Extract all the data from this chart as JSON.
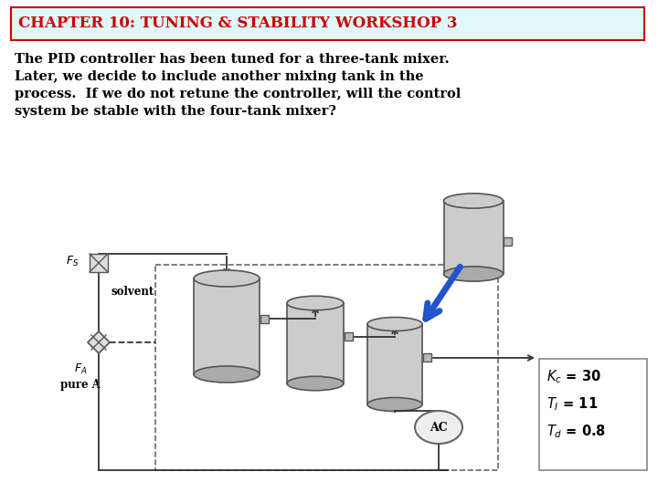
{
  "title": "CHAPTER 10: TUNING & STABILITY WORKSHOP 3",
  "title_color": "#cc0000",
  "title_bg": "#dff8f8",
  "title_border": "#cc0000",
  "body_text_lines": [
    "The PID controller has been tuned for a three-tank mixer.",
    "Later, we decide to include another mixing tank in the",
    "process.  If we do not retune the controller, will the control",
    "system be stable with the four-tank mixer?"
  ],
  "bg_color": "#ffffff",
  "tank_fill": "#cccccc",
  "tank_bottom": "#aaaaaa",
  "tank_edge": "#555555",
  "line_color": "#333333",
  "arrow_blue": "#2255cc",
  "valve_fill": "#dddddd",
  "ac_fill": "#eeeeee",
  "pid_border": "#888888",
  "pid_bg": "#ffffff",
  "pid_text_color": "#000000",
  "text_color": "#000000",
  "solvent_label": "solvent",
  "pureA_label": "pure A",
  "AC_label": "AC",
  "pid_lines": [
    "$K_c$ = 30",
    "$T_I$ = 11",
    "$T_d$ = 0.8"
  ]
}
